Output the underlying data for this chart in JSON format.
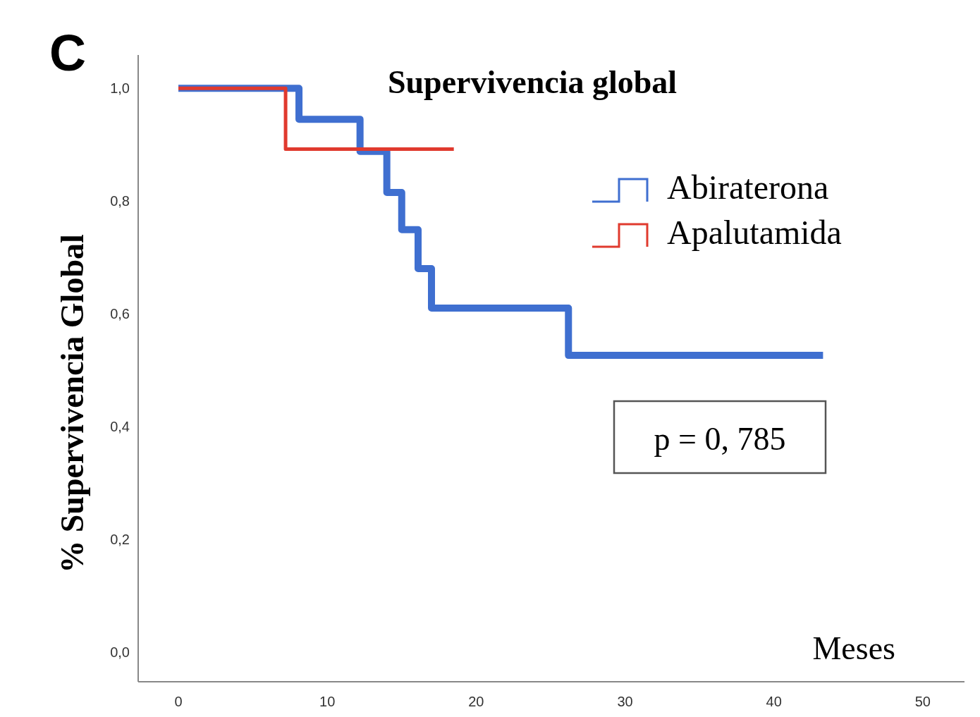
{
  "chart_data": {
    "type": "step",
    "title": "Supervivencia global",
    "xlabel": "Meses",
    "ylabel": "% Supervivencia Global",
    "annotations": [
      "C",
      "p = 0, 785"
    ],
    "xlim": [
      -2.7,
      52.8
    ],
    "xticks": [
      0,
      10,
      20,
      30,
      40,
      50
    ],
    "ylim": [
      -0.053,
      1.059
    ],
    "yticks": [
      {
        "value": 0,
        "label": "0,0"
      },
      {
        "value": 0.2,
        "label": "0,2"
      },
      {
        "value": 0.4,
        "label": "0,4"
      },
      {
        "value": 0.6,
        "label": "0,6"
      },
      {
        "value": 0.8,
        "label": "0,8"
      },
      {
        "value": 1,
        "label": "1,0"
      }
    ],
    "grid": false,
    "legend": "top right",
    "series": [
      {
        "name": "Abiraterona",
        "color": "#3f6fd0",
        "x": [
          0,
          8.1,
          12.2,
          14.0,
          15.0,
          16.1,
          17.0,
          26.2,
          43.3
        ],
        "values": [
          1,
          0.945,
          0.888,
          0.815,
          0.749,
          0.68,
          0.61,
          0.526,
          0.526
        ]
      },
      {
        "name": "Apalutamida",
        "color": "#e03a2e",
        "x": [
          0,
          7.2,
          18.5
        ],
        "values": [
          1,
          0.892,
          0.892
        ]
      }
    ]
  }
}
